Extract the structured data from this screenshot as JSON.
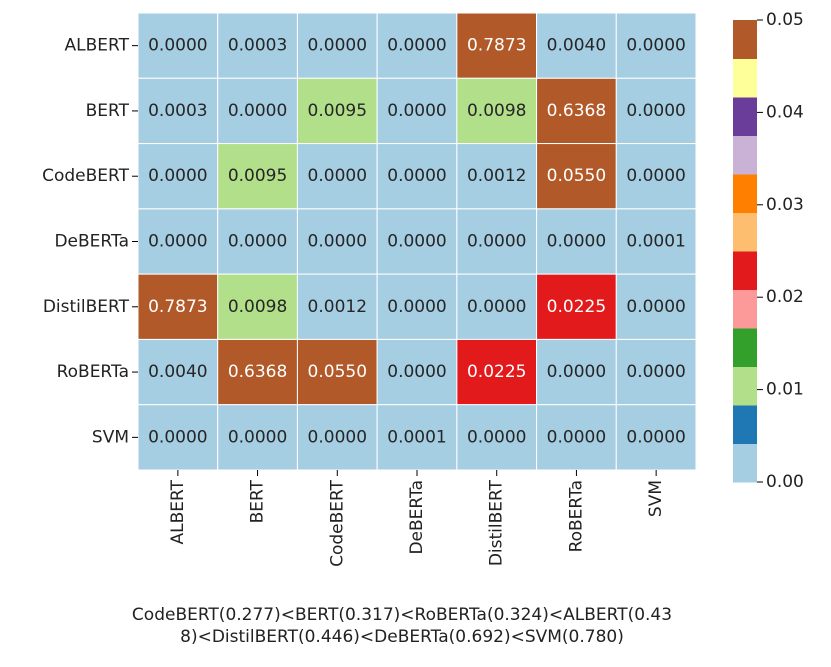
{
  "chart_data": {
    "type": "heatmap",
    "rows": [
      "ALBERT",
      "BERT",
      "CodeBERT",
      "DeBERTa",
      "DistilBERT",
      "RoBERTa",
      "SVM"
    ],
    "columns": [
      "ALBERT",
      "BERT",
      "CodeBERT",
      "DeBERTa",
      "DistilBERT",
      "RoBERTa",
      "SVM"
    ],
    "values": [
      [
        0,
        0.0003,
        0,
        0,
        0.7873,
        0.004,
        0
      ],
      [
        0.0003,
        0,
        0.0095,
        0,
        0.0098,
        0.6368,
        0
      ],
      [
        0,
        0.0095,
        0,
        0,
        0.0012,
        0.055,
        0
      ],
      [
        0,
        0,
        0,
        0,
        0,
        0,
        0.0001
      ],
      [
        0.7873,
        0.0098,
        0.0012,
        0,
        0,
        0.0225,
        0
      ],
      [
        0.004,
        0.6368,
        0.055,
        0,
        0.0225,
        0,
        0
      ],
      [
        0,
        0,
        0,
        0.0001,
        0,
        0,
        0
      ]
    ],
    "value_labels": [
      [
        "0.0000",
        "0.0003",
        "0.0000",
        "0.0000",
        "0.7873",
        "0.0040",
        "0.0000"
      ],
      [
        "0.0003",
        "0.0000",
        "0.0095",
        "0.0000",
        "0.0098",
        "0.6368",
        "0.0000"
      ],
      [
        "0.0000",
        "0.0095",
        "0.0000",
        "0.0000",
        "0.0012",
        "0.0550",
        "0.0000"
      ],
      [
        "0.0000",
        "0.0000",
        "0.0000",
        "0.0000",
        "0.0000",
        "0.0000",
        "0.0001"
      ],
      [
        "0.7873",
        "0.0098",
        "0.0012",
        "0.0000",
        "0.0000",
        "0.0225",
        "0.0000"
      ],
      [
        "0.0040",
        "0.6368",
        "0.0550",
        "0.0000",
        "0.0225",
        "0.0000",
        "0.0000"
      ],
      [
        "0.0000",
        "0.0000",
        "0.0000",
        "0.0001",
        "0.0000",
        "0.0000",
        "0.0000"
      ]
    ],
    "colormap": [
      "#a6cee3",
      "#1f78b4",
      "#b2df8a",
      "#33a02c",
      "#fb9a99",
      "#e31a1c",
      "#fdbf6f",
      "#ff7f00",
      "#cab2d6",
      "#6a3d9a",
      "#ffff99",
      "#b15928"
    ],
    "clim": [
      0,
      0.05
    ],
    "cticks": [
      {
        "value": 0,
        "label": "0.00"
      },
      {
        "value": 0.01,
        "label": "0.01"
      },
      {
        "value": 0.02,
        "label": "0.02"
      },
      {
        "value": 0.03,
        "label": "0.03"
      },
      {
        "value": 0.04,
        "label": "0.04"
      },
      {
        "value": 0.05,
        "label": "0.05"
      }
    ],
    "xlabel": [
      "CodeBERT(0.277)<BERT(0.317)<RoBERTa(0.324)<ALBERT(0.43",
      "8)<DistilBERT(0.446)<DeBERTa(0.692)<SVM(0.780)"
    ]
  }
}
